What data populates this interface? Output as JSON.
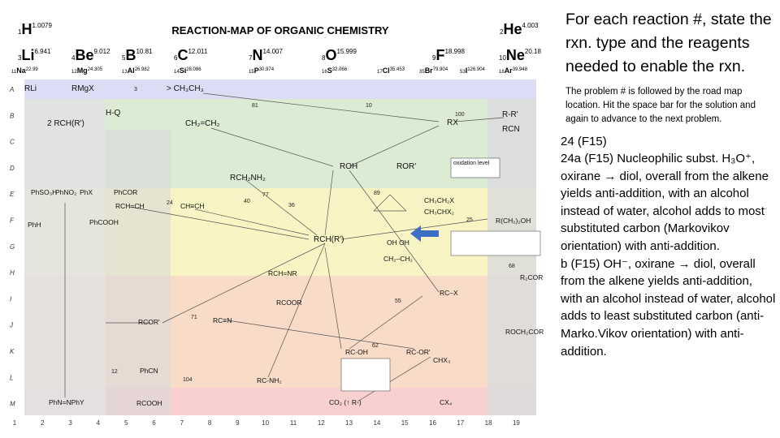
{
  "map": {
    "title": "REACTION-MAP OF ORGANIC CHEMISTRY",
    "elements": [
      {
        "number": "1",
        "symbol": "H",
        "mass": "1.0079"
      },
      {
        "number": "2",
        "symbol": "He",
        "mass": "4.003"
      },
      {
        "number": "3",
        "symbol": "Li",
        "mass": "6.941"
      },
      {
        "number": "4",
        "symbol": "Be",
        "mass": "9.012"
      },
      {
        "number": "5",
        "symbol": "B",
        "mass": "10.81"
      },
      {
        "number": "6",
        "symbol": "C",
        "mass": "12.011"
      },
      {
        "number": "7",
        "symbol": "N",
        "mass": "14.007"
      },
      {
        "number": "8",
        "symbol": "O",
        "mass": "15.999"
      },
      {
        "number": "9",
        "symbol": "F",
        "mass": "18.998"
      },
      {
        "number": "10",
        "symbol": "Ne",
        "mass": "20.18"
      },
      {
        "number": "11",
        "symbol": "Na",
        "mass": "22.99"
      },
      {
        "number": "12",
        "symbol": "Mg",
        "mass": "24.305"
      },
      {
        "number": "13",
        "symbol": "Al",
        "mass": "26.982"
      },
      {
        "number": "14",
        "symbol": "Si",
        "mass": "28.086"
      },
      {
        "number": "15",
        "symbol": "P",
        "mass": "30.974"
      },
      {
        "number": "16",
        "symbol": "S",
        "mass": "32.066"
      },
      {
        "number": "17",
        "symbol": "Cl",
        "mass": "35.453"
      },
      {
        "number": "35",
        "symbol": "Br",
        "mass": "79.904"
      },
      {
        "number": "53",
        "symbol": "I",
        "mass": "126.904"
      },
      {
        "number": "18",
        "symbol": "Ar",
        "mass": "39.948"
      }
    ],
    "rows": [
      "A",
      "B",
      "C",
      "D",
      "E",
      "F",
      "G",
      "H",
      "I",
      "J",
      "K",
      "L",
      "M"
    ],
    "columns": [
      "1",
      "2",
      "3",
      "4",
      "5",
      "6",
      "7",
      "8",
      "9",
      "10",
      "11",
      "12",
      "13",
      "14",
      "15",
      "16",
      "17",
      "18",
      "19"
    ],
    "nodes": [
      "RLi",
      "RMgX",
      "> CH₃CH₃",
      "H-Q",
      "CH₂=CH₂",
      "RX",
      "R-R'",
      "RCN",
      "2 RCH(R')",
      "ROH",
      "ROR'",
      "RCH₂NH₂",
      "PhSO₃H",
      "PhNO₂",
      "PhX",
      "PhCOR",
      "RCH=CH",
      "CH≡CH",
      "CH₃CH₂X",
      "CH₃CHX₂",
      "PhH",
      "PhCOOH",
      "R(CH₂)₂OH",
      "RCH(R')",
      "OH  OH",
      "CH₂–CH₂",
      "RCH=NR",
      "RC–X",
      "RCOOR",
      "R₂COR",
      "RCOR'",
      "RC≡N",
      "RC-OH",
      "RC-OR'",
      "ROCH₂COR",
      "CHX₃",
      "RC-NH₂",
      "PhCN",
      "RCOOH",
      "CO₂ (↑ R-)",
      "CX₄",
      "PhN=NPhY",
      "oxidation level"
    ],
    "numbers": [
      "3",
      "81",
      "10",
      "100",
      "24",
      "77",
      "36",
      "25",
      "104",
      "71",
      "12",
      "62",
      "68",
      "55",
      "89",
      "40"
    ]
  },
  "panel": {
    "heading": "For each reaction #, state the rxn. type and the reagents needed to enable the rxn.",
    "instructions": "The problem # is followed by the road map location.  Hit the space bar for the solution and again to advance to the next problem.",
    "problem": "24  (F15)",
    "body": [
      "24a (F15) Nucleophilic subst. H₃O⁺, oxirane → diol, overall from the alkene yields anti-addition, with an alcohol instead of water, alcohol adds to most substituted carbon (Markovikov orientation) with anti-addition.",
      "b (F15)  OH⁻,  oxirane → diol, overall from the alkene yields anti-addition, with an alcohol instead of water, alcohol adds to least substituted carbon (anti-Marko.Vikov orientation) with anti-addition."
    ]
  }
}
